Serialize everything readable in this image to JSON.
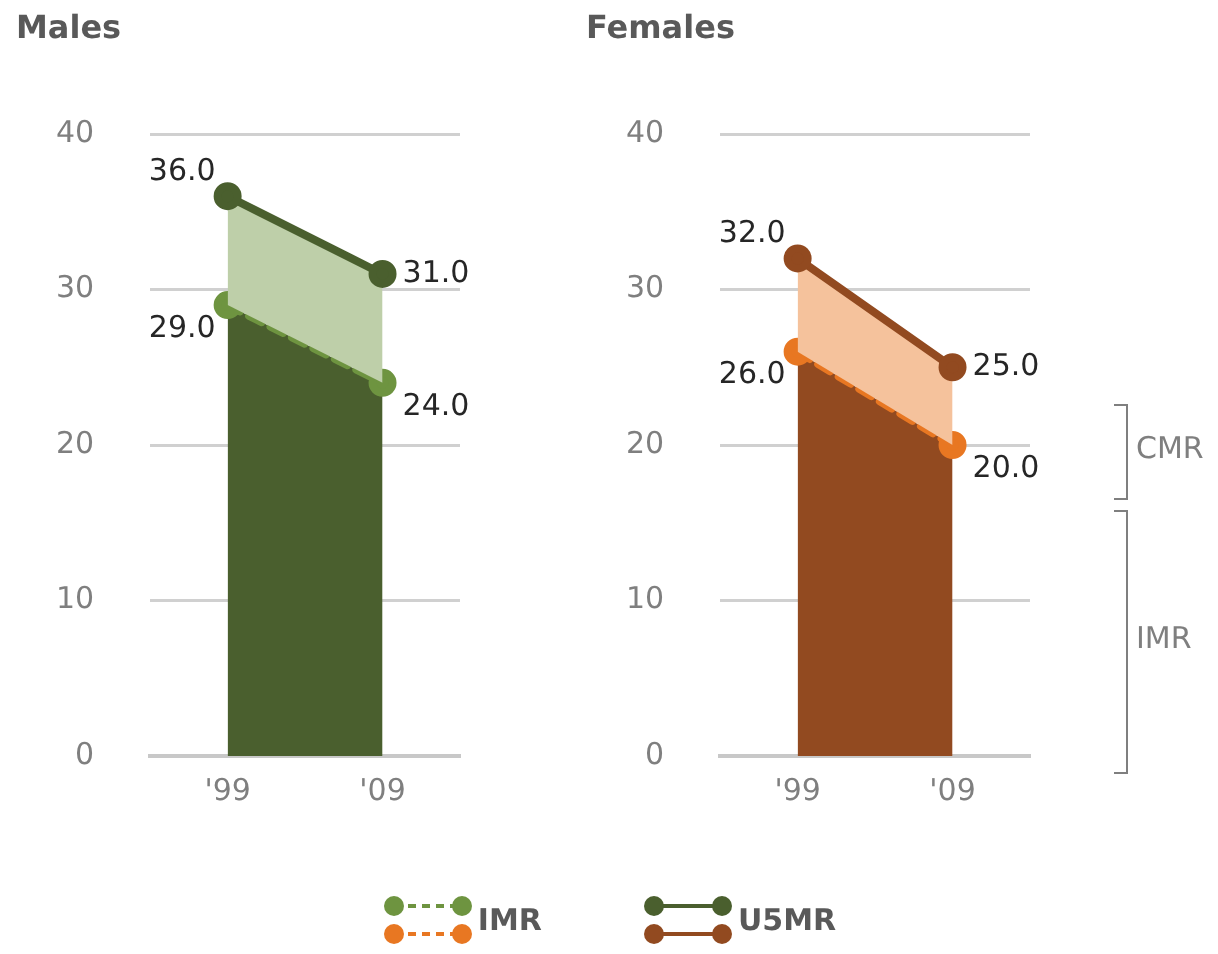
{
  "chart_data": [
    {
      "type": "area",
      "title": "Males",
      "categories": [
        "'99",
        "'09"
      ],
      "ylim": [
        0,
        40
      ],
      "yticks": [
        0,
        10,
        20,
        30,
        40
      ],
      "grid": "y",
      "legend": "bottom",
      "marker": "circle",
      "series": [
        {
          "name": "IMR",
          "color": "#6e9440",
          "values": [
            29.0,
            24.0
          ],
          "value_labels": [
            "29.0",
            "24.0"
          ],
          "line_style": "dashed"
        },
        {
          "name": "U5MR",
          "color": "#4a5f2e",
          "values": [
            36.0,
            31.0
          ],
          "value_labels": [
            "36.0",
            "31.0"
          ],
          "line_style": "solid"
        }
      ]
    },
    {
      "type": "area",
      "title": "Females",
      "categories": [
        "'99",
        "'09"
      ],
      "ylim": [
        0,
        40
      ],
      "yticks": [
        0,
        10,
        20,
        30,
        40
      ],
      "grid": "y",
      "marker": "circle",
      "annotations": [
        "CMR",
        "IMR"
      ],
      "series": [
        {
          "color": "#e87722",
          "values": [
            26.0,
            20.0
          ],
          "value_labels": [
            "26.0",
            "20.0"
          ],
          "line_style": "dashed"
        },
        {
          "color": "#924a20",
          "values": [
            32.0,
            25.0
          ],
          "value_labels": [
            "32.0",
            "25.0"
          ],
          "line_style": "solid"
        }
      ]
    }
  ]
}
